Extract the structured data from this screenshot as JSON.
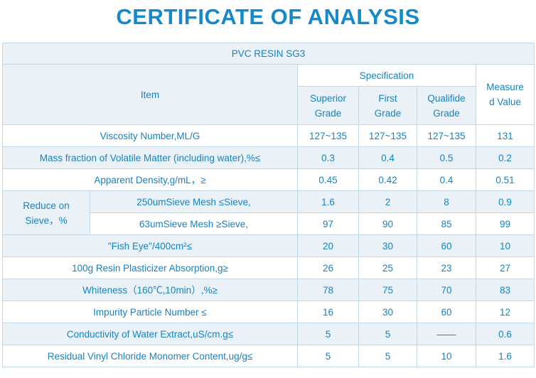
{
  "title": "CERTIFICATE OF ANALYSIS",
  "product": "PVC RESIN SG3",
  "headers": {
    "item": "Item",
    "specification": "Specification",
    "superior": "Superior Grade",
    "first": "First Grade",
    "qualified": "Qualifide Grade",
    "measured": "Measured Value"
  },
  "rows": [
    {
      "item": "Viscosity Number,ML/G",
      "superior": "127~135",
      "first": "127~135",
      "qualified": "127~135",
      "measured": "131"
    },
    {
      "item": "Mass fraction of Volatile Matter (including water),%≤",
      "superior": "0.3",
      "first": "0.4",
      "qualified": "0.5",
      "measured": "0.2"
    },
    {
      "item": "Apparent Density,g/mL，≥",
      "superior": "0.45",
      "first": "0.42",
      "qualified": "0.4",
      "measured": "0.51"
    }
  ],
  "sieve": {
    "label": "Reduce on Sieve，%",
    "rows": [
      {
        "item": "250umSieve Mesh ≤Sieve,",
        "superior": "1.6",
        "first": "2",
        "qualified": "8",
        "measured": "0.9"
      },
      {
        "item": "63umSieve Mesh ≥Sieve,",
        "superior": "97",
        "first": "90",
        "qualified": "85",
        "measured": "99"
      }
    ]
  },
  "rows2": [
    {
      "item": "\"Fish Eye\"/400cm²≤",
      "superior": "20",
      "first": "30",
      "qualified": "60",
      "measured": "10"
    },
    {
      "item": "100g Resin Plasticizer Absorption,g≥",
      "superior": "26",
      "first": "25",
      "qualified": "23",
      "measured": "27"
    },
    {
      "item": "Whiteness（160℃,10min）,%≥",
      "superior": "78",
      "first": "75",
      "qualified": "70",
      "measured": "83"
    },
    {
      "item": "Impurity Particle Number ≤",
      "superior": "16",
      "first": "30",
      "qualified": "60",
      "measured": "12"
    },
    {
      "item": "Conductivity of Water Extract,uS/cm.g≤",
      "superior": "5",
      "first": "5",
      "qualified": "——",
      "measured": "0.6"
    },
    {
      "item": "Residual Vinyl Chloride Monomer Content,ug/g≤",
      "superior": "5",
      "first": "5",
      "qualified": "10",
      "measured": "1.6"
    }
  ],
  "colors": {
    "accent": "#1589c9",
    "text": "#1583c4",
    "row_shade": "#eaf2f8",
    "border": "#c3d8e6"
  }
}
